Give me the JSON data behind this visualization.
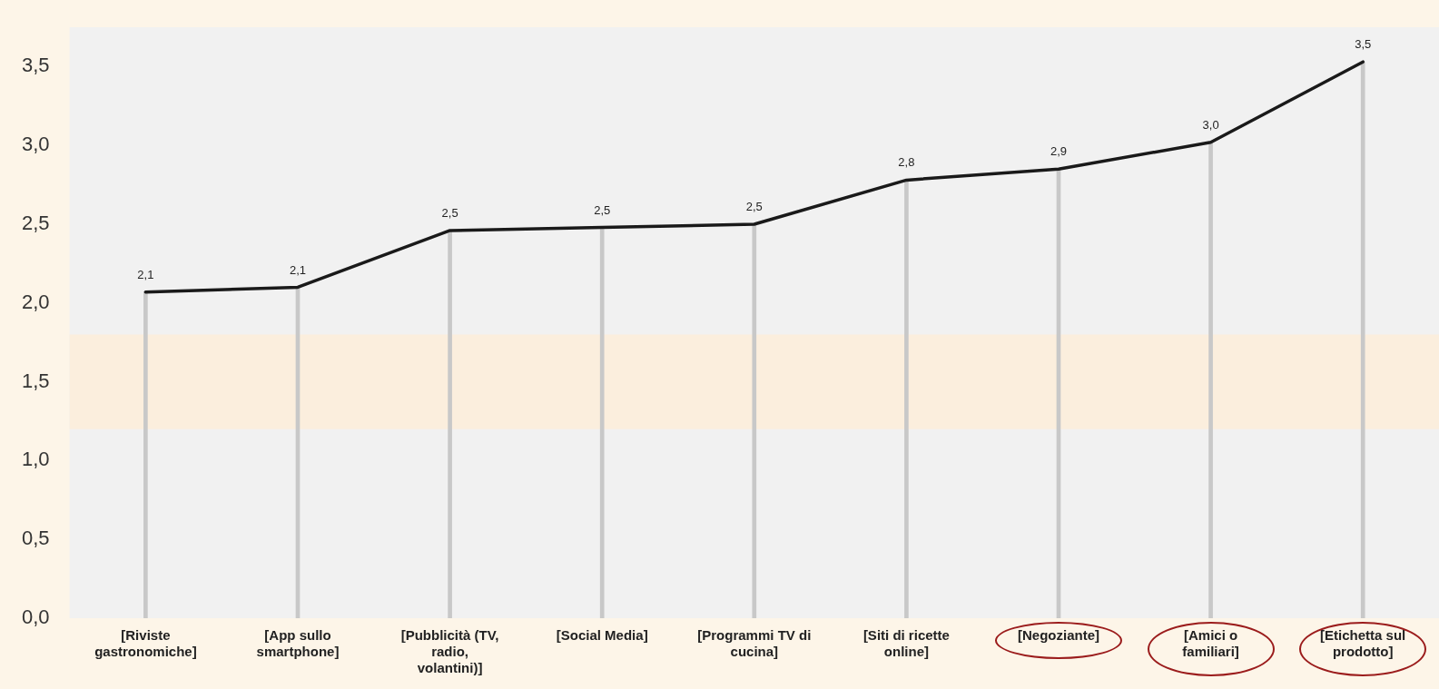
{
  "chart_data": {
    "type": "line",
    "categories": [
      "[Riviste gastronomiche]",
      "[App sullo smartphone]",
      "[Pubblicità (TV, radio, volantini)]",
      "[Social Media]",
      "[Programmi TV di cucina]",
      "[Siti di ricette online]",
      "[Negoziante]",
      "[Amici o familiari]",
      "[Etichetta sul prodotto]"
    ],
    "series": [
      {
        "type": "bar",
        "color": "#c8c8c8",
        "values": [
          2.07,
          2.1,
          2.46,
          2.48,
          2.5,
          2.78,
          2.85,
          3.02,
          3.53
        ]
      },
      {
        "color": "#1a1a1a",
        "values": [
          2.07,
          2.1,
          2.46,
          2.48,
          2.5,
          2.78,
          2.85,
          3.02,
          3.53
        ],
        "value_labels": [
          "2,1",
          "2,1",
          "2,5",
          "2,5",
          "2,5",
          "2,8",
          "2,9",
          "3,0",
          "3,5"
        ]
      }
    ],
    "ylim": [
      0,
      3.75
    ],
    "yticks": [
      {
        "value": 0,
        "label": "0,0"
      },
      {
        "value": 0.5,
        "label": "0,5"
      },
      {
        "value": 1,
        "label": "1,0"
      },
      {
        "value": 1.5,
        "label": "1,5"
      },
      {
        "value": 2,
        "label": "2,0"
      },
      {
        "value": 2.5,
        "label": "2,5"
      },
      {
        "value": 3,
        "label": "3,0"
      },
      {
        "value": 3.5,
        "label": "3,5"
      }
    ],
    "bands": [
      {
        "axis": "y",
        "from": 1.2,
        "to": 1.8,
        "color": "#fbeedd"
      }
    ],
    "grid": false,
    "legend": false,
    "marker": "none",
    "line_style": "solid"
  }
}
